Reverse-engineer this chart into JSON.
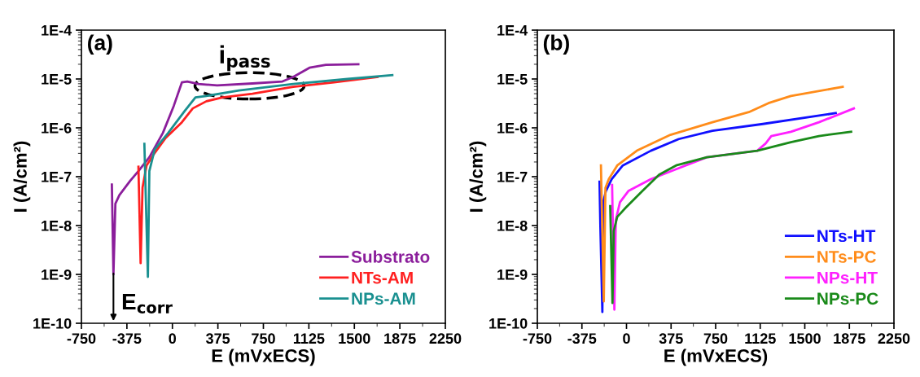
{
  "chart_data": [
    {
      "type": "line",
      "xlabel": "E (mVxECS)",
      "ylabel": "I (A/cm²)",
      "log": "y",
      "xlim": [
        -750,
        2250
      ],
      "xticks": [
        -750,
        -375,
        0,
        375,
        750,
        1125,
        1500,
        1875,
        2250
      ],
      "ylim": [
        1e-10,
        0.0001
      ],
      "yticks": [
        {
          "value": 1e-10,
          "label": "1E-10"
        },
        {
          "value": 1e-09,
          "label": "1E-9"
        },
        {
          "value": 1e-08,
          "label": "1E-8"
        },
        {
          "value": 1e-07,
          "label": "1E-7"
        },
        {
          "value": 1e-06,
          "label": "1E-6"
        },
        {
          "value": 1e-05,
          "label": "1E-5"
        },
        {
          "value": 0.0001,
          "label": "1E-4"
        }
      ],
      "grid": false,
      "legend": "bottom right",
      "marker": "none",
      "line_style": "solid",
      "annotations": [
        "(a)",
        "i$_{pass}$",
        "E$_{corr}$"
      ],
      "series": [
        {
          "name": "Substrato",
          "color": "#8b1e9b",
          "x": [
            -499,
            -486,
            -470,
            -437,
            -347,
            -280,
            -190,
            -78,
            11,
            78,
            123,
            213,
            369,
            660,
            907,
            996,
            1130,
            1265,
            1533
          ],
          "values": [
            6.9e-08,
            1e-09,
            2.8e-08,
            4.2e-08,
            8.3e-08,
            1.3e-07,
            2.5e-07,
            7.9e-07,
            2.8e-06,
            8.5e-06,
            8.9e-06,
            7.9e-06,
            7.4e-06,
            8.1e-06,
            8.9e-06,
            1.1e-05,
            1.7e-05,
            1.95e-05,
            2e-05
          ]
        },
        {
          "name": "NTs-AM",
          "color": "#ff2020",
          "x": [
            -280,
            -262,
            -246,
            -213,
            -157,
            -56,
            78,
            168,
            280,
            414,
            660,
            996,
            1332,
            1690
          ],
          "values": [
            1.6e-07,
            1.7e-09,
            6e-08,
            1.7e-07,
            2.8e-07,
            6.2e-07,
            1.3e-06,
            2.5e-06,
            3.5e-06,
            4.2e-06,
            5e-06,
            6.9e-06,
            8.5e-06,
            1.1e-05
          ]
        },
        {
          "name": "NPs-AM",
          "color": "#1a9090",
          "x": [
            -231,
            -202,
            -190,
            -146,
            -34,
            101,
            190,
            280,
            548,
            996,
            1444,
            1813
          ],
          "values": [
            4.7e-07,
            8.9e-10,
            1.3e-07,
            3.6e-07,
            7.9e-07,
            2.2e-06,
            4.2e-06,
            4.5e-06,
            5.8e-06,
            7.9e-06,
            1e-05,
            1.2e-05
          ]
        }
      ]
    },
    {
      "type": "line",
      "xlabel": "E (mVxECS)",
      "ylabel": "I (A/cm²)",
      "log": "y",
      "xlim": [
        -750,
        2250
      ],
      "xticks": [
        -750,
        -375,
        0,
        375,
        750,
        1125,
        1500,
        1875,
        2250
      ],
      "ylim": [
        1e-10,
        0.0001
      ],
      "yticks": [
        {
          "value": 1e-10,
          "label": "1E-10"
        },
        {
          "value": 1e-09,
          "label": "1E-9"
        },
        {
          "value": 1e-08,
          "label": "1E-8"
        },
        {
          "value": 1e-07,
          "label": "1E-7"
        },
        {
          "value": 1e-06,
          "label": "1E-6"
        },
        {
          "value": 1e-05,
          "label": "1E-5"
        },
        {
          "value": 0.0001,
          "label": "1E-4"
        }
      ],
      "grid": false,
      "legend": "bottom right",
      "marker": "none",
      "line_style": "solid",
      "annotations": [
        "(b)"
      ],
      "series": [
        {
          "name": "NTs-HT",
          "color": "#1010ff",
          "x": [
            -227,
            -220,
            -203,
            -196,
            -173,
            -125,
            -31,
            205,
            440,
            723,
            1147,
            1760
          ],
          "values": [
            7.9e-08,
            1e-08,
            1.7e-10,
            3e-08,
            5.1e-08,
            8.9e-08,
            1.7e-07,
            3.4e-07,
            5.9e-07,
            8.7e-07,
            1.2e-06,
            2e-06
          ]
        },
        {
          "name": "NTs-PC",
          "color": "#ff8c1a",
          "x": [
            -215,
            -191,
            -177,
            -149,
            -78,
            87,
            370,
            723,
            1029,
            1194,
            1383,
            1819
          ],
          "values": [
            1.7e-07,
            2.8e-10,
            5.9e-08,
            8.9e-08,
            1.7e-07,
            3.4e-07,
            7.2e-07,
            1.3e-06,
            2.1e-06,
            3.2e-06,
            4.5e-06,
            6.9e-06
          ]
        },
        {
          "name": "NPs-HT",
          "color": "#ff20ff",
          "x": [
            -121,
            -102,
            -90,
            -55,
            16,
            205,
            440,
            676,
            1100,
            1171,
            1218,
            1383,
            1619,
            1913
          ],
          "values": [
            6.8e-08,
            1.9e-10,
            1.3e-08,
            3e-08,
            5.1e-08,
            8.9e-08,
            1.5e-07,
            2.5e-07,
            3.4e-07,
            4.8e-07,
            6.8e-07,
            8.3e-07,
            1.3e-06,
            2.5e-06
          ]
        },
        {
          "name": "NPs-PC",
          "color": "#1a8a1a",
          "x": [
            -137,
            -118,
            -107,
            -78,
            -8,
            134,
            275,
            417,
            676,
            1100,
            1383,
            1619,
            1890
          ],
          "values": [
            2.5e-08,
            2.6e-10,
            7.8e-09,
            1.5e-08,
            2.3e-08,
            5.1e-08,
            1.1e-07,
            1.7e-07,
            2.5e-07,
            3.4e-07,
            5.1e-07,
            6.8e-07,
            8.3e-07
          ]
        }
      ]
    }
  ]
}
